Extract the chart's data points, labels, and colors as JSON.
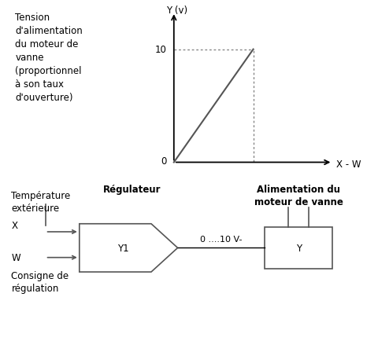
{
  "bg_color": "#ffffff",
  "graph_label_text": "Tension\nd'alimentation\ndu moteur de\nvanne\n(proportionnel\nà son taux\nd'ouverture)",
  "y_axis_label": "Y (v)",
  "x_axis_label": "X - W",
  "y_tick_10": "10",
  "y_tick_0": "0",
  "reg_label": "Régulateur",
  "reg_box_label": "Y1",
  "signal_label": "0 ....10 V-",
  "motor_box_label": "Y",
  "motor_title": "Alimentation du\nmoteur de vanne",
  "temp_label": "Température\nextérieure",
  "x_label": "X",
  "w_label": "W",
  "consigne_label": "Consigne de\nrégulation",
  "font_size": 8.5,
  "line_color": "#555555",
  "dot_color": "#888888"
}
